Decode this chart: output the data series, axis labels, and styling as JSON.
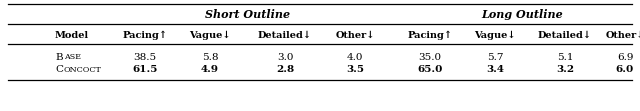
{
  "title_short": "Short Outline",
  "title_long": "Long Outline",
  "col_headers": [
    "Model",
    "Pacing↑",
    "Vague↓",
    "Detailed↓",
    "Other↓",
    "Pacing↑",
    "Vague↓",
    "Detailed↓",
    "Other↓"
  ],
  "row0_model": [
    "B",
    "ASE"
  ],
  "row1_model": [
    "C",
    "ONCOCT"
  ],
  "rows_data": [
    [
      "38.5",
      "5.8",
      "3.0",
      "4.0",
      "35.0",
      "5.7",
      "5.1",
      "6.9"
    ],
    [
      "61.5",
      "4.9",
      "2.8",
      "3.5",
      "65.0",
      "3.4",
      "3.2",
      "6.0"
    ]
  ],
  "background_color": "#ffffff",
  "font_family": "DejaVu Serif"
}
